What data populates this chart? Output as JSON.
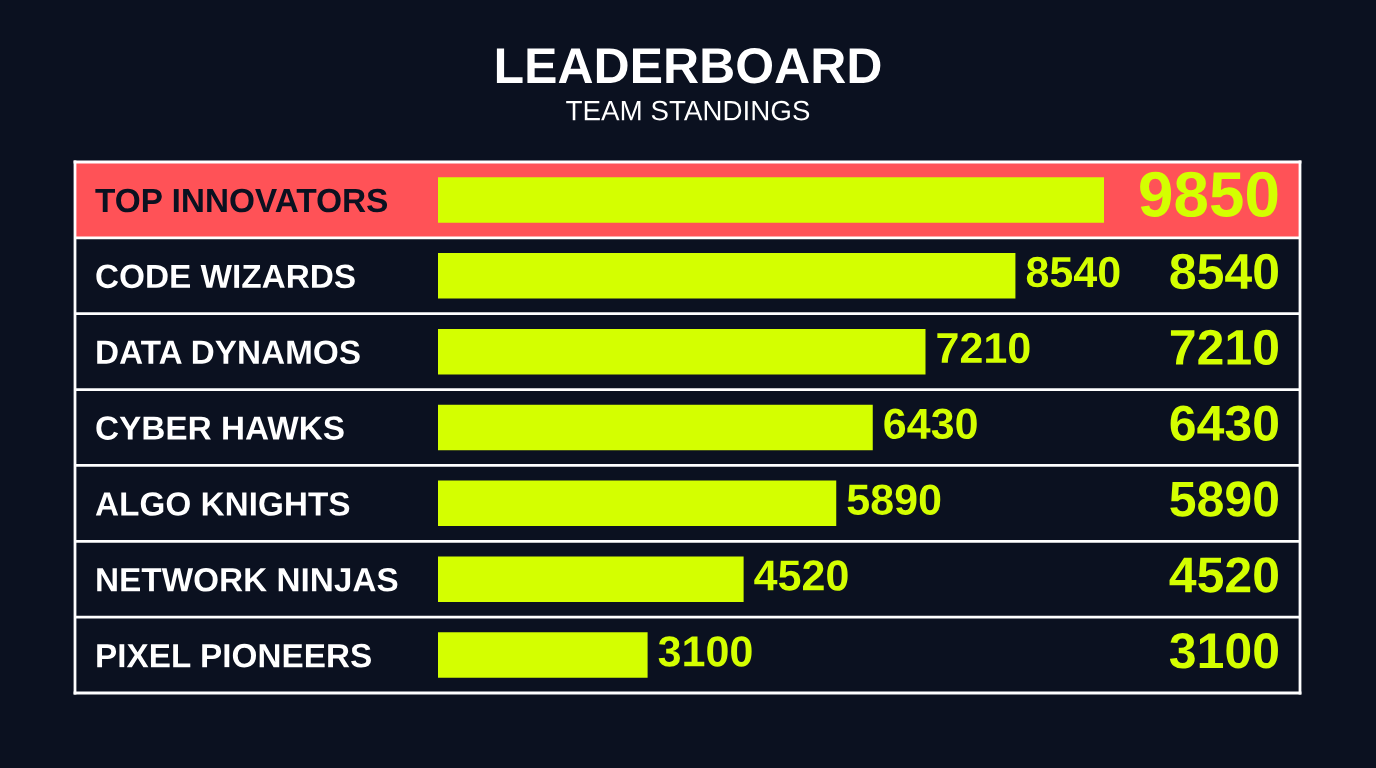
{
  "chart_data": {
    "type": "bar",
    "orientation": "horizontal",
    "title": "LEADERBOARD",
    "subtitle": "TEAM STANDINGS",
    "categories": [
      "TOP INNOVATORS",
      "CODE WIZARDS",
      "DATA DYNAMOS",
      "CYBER HAWKS",
      "ALGO KNIGHTS",
      "NETWORK NINJAS",
      "PIXEL PIONEERS"
    ],
    "values": [
      9850,
      8540,
      7210,
      6430,
      5890,
      4520,
      3100
    ],
    "color": "#d4ff00",
    "value_labels": [
      null,
      "8540",
      "7210",
      "6430",
      "5890",
      "4520",
      "3100"
    ],
    "annotations": [
      "9850",
      "8540",
      "7210",
      "6430",
      "5890",
      "4520",
      "3100"
    ],
    "bands": [
      {
        "axis": "y",
        "from": "TOP INNOVATORS",
        "to": "TOP INNOVATORS",
        "color": "#ff5257"
      }
    ],
    "grid": "y",
    "tick_labels": "y"
  }
}
